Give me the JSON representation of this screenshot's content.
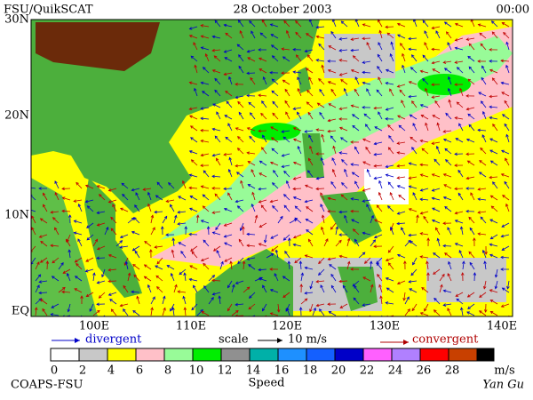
{
  "header": {
    "left": "FSU/QuikSCAT",
    "center": "28 October 2003",
    "right": "00:00"
  },
  "map": {
    "lat_labels": [
      "30N",
      "20N",
      "10N",
      "EQ"
    ],
    "lon_labels": [
      "100E",
      "110E",
      "120E",
      "130E",
      "140E"
    ]
  },
  "legend": {
    "divergent": "divergent",
    "scale": "scale",
    "scale_value": "10 m/s",
    "convergent": "convergent"
  },
  "colorbar": {
    "labels": [
      0,
      2,
      4,
      6,
      8,
      10,
      12,
      14,
      16,
      18,
      20,
      22,
      24,
      26,
      28
    ],
    "colors": [
      "#ffffff",
      "#c8c8c8",
      "#ffff00",
      "#ffc0c8",
      "#98fb98",
      "#00ee00",
      "#909090",
      "#00b0a8",
      "#1e90ff",
      "#1460ff",
      "#0000c8",
      "#ff60ff",
      "#b080ff",
      "#ff0000",
      "#c84000",
      "#000000"
    ],
    "unit": "m/s",
    "title": "Speed"
  },
  "footer": {
    "left": "COAPS-FSU",
    "right": "Yan Gu"
  }
}
